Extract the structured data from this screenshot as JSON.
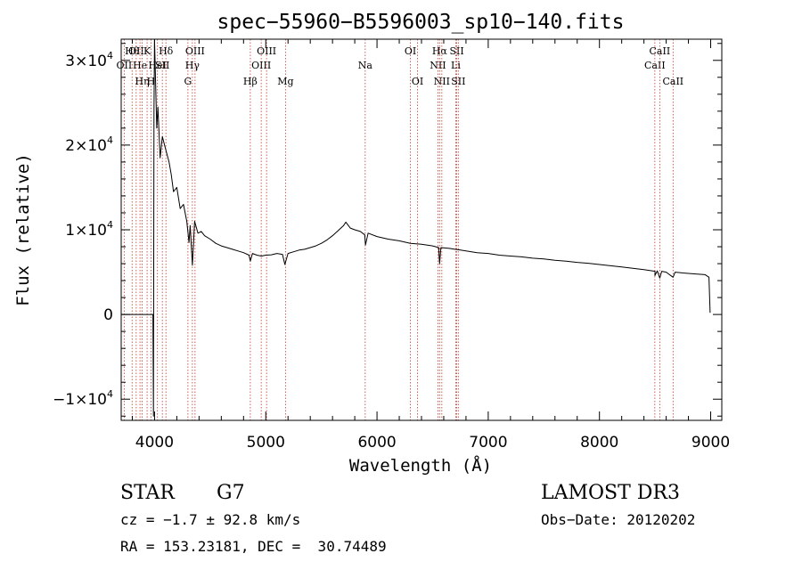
{
  "chart_data": {
    "type": "line",
    "title": "spec−55960−B5596003_sp10−140.fits",
    "xlabel": "Wavelength (Å)",
    "ylabel": "Flux (relative)",
    "xlim": [
      3700,
      9100
    ],
    "ylim": [
      -12500,
      32500
    ],
    "x_ticks": [
      {
        "value": 4000,
        "label": "4000"
      },
      {
        "value": 5000,
        "label": "5000"
      },
      {
        "value": 6000,
        "label": "6000"
      },
      {
        "value": 7000,
        "label": "7000"
      },
      {
        "value": 8000,
        "label": "8000"
      },
      {
        "value": 9000,
        "label": "9000"
      }
    ],
    "y_ticks": [
      {
        "value": -10000,
        "label": "−1×10",
        "exp": "4"
      },
      {
        "value": 0,
        "label": "0",
        "exp": ""
      },
      {
        "value": 10000,
        "label": "1×10",
        "exp": "4"
      },
      {
        "value": 20000,
        "label": "2×10",
        "exp": "4"
      },
      {
        "value": 30000,
        "label": "3×10",
        "exp": "4"
      }
    ],
    "series": [
      {
        "name": "spectrum",
        "color": "#000000",
        "points": [
          [
            3700,
            0
          ],
          [
            3985,
            0
          ],
          [
            3990,
            -12000
          ],
          [
            3995,
            24000
          ],
          [
            4000,
            32500
          ],
          [
            4010,
            27000
          ],
          [
            4020,
            22000
          ],
          [
            4030,
            24500
          ],
          [
            4050,
            18500
          ],
          [
            4070,
            21000
          ],
          [
            4100,
            19500
          ],
          [
            4130,
            18000
          ],
          [
            4150,
            16500
          ],
          [
            4170,
            14500
          ],
          [
            4200,
            15000
          ],
          [
            4230,
            12500
          ],
          [
            4260,
            13000
          ],
          [
            4290,
            11000
          ],
          [
            4310,
            8500
          ],
          [
            4320,
            10500
          ],
          [
            4340,
            5800
          ],
          [
            4360,
            11000
          ],
          [
            4390,
            9600
          ],
          [
            4420,
            9800
          ],
          [
            4450,
            9300
          ],
          [
            4500,
            8900
          ],
          [
            4550,
            8400
          ],
          [
            4600,
            8100
          ],
          [
            4650,
            7900
          ],
          [
            4700,
            7700
          ],
          [
            4750,
            7500
          ],
          [
            4800,
            7300
          ],
          [
            4850,
            7000
          ],
          [
            4861,
            6300
          ],
          [
            4880,
            7200
          ],
          [
            4920,
            7000
          ],
          [
            4960,
            6900
          ],
          [
            5000,
            7000
          ],
          [
            5050,
            7050
          ],
          [
            5100,
            7200
          ],
          [
            5150,
            7100
          ],
          [
            5172,
            5900
          ],
          [
            5200,
            7200
          ],
          [
            5250,
            7400
          ],
          [
            5300,
            7600
          ],
          [
            5350,
            7700
          ],
          [
            5400,
            7900
          ],
          [
            5450,
            8100
          ],
          [
            5500,
            8400
          ],
          [
            5550,
            8800
          ],
          [
            5600,
            9300
          ],
          [
            5650,
            9900
          ],
          [
            5700,
            10500
          ],
          [
            5720,
            10900
          ],
          [
            5760,
            10200
          ],
          [
            5800,
            10000
          ],
          [
            5850,
            9800
          ],
          [
            5890,
            9400
          ],
          [
            5896,
            8200
          ],
          [
            5920,
            9600
          ],
          [
            6000,
            9200
          ],
          [
            6100,
            8900
          ],
          [
            6200,
            8700
          ],
          [
            6300,
            8400
          ],
          [
            6400,
            8300
          ],
          [
            6500,
            8100
          ],
          [
            6555,
            7900
          ],
          [
            6563,
            6000
          ],
          [
            6575,
            7900
          ],
          [
            6650,
            7800
          ],
          [
            6700,
            7700
          ],
          [
            6750,
            7600
          ],
          [
            6800,
            7500
          ],
          [
            6900,
            7300
          ],
          [
            7000,
            7200
          ],
          [
            7100,
            7000
          ],
          [
            7200,
            6900
          ],
          [
            7300,
            6800
          ],
          [
            7400,
            6650
          ],
          [
            7500,
            6550
          ],
          [
            7600,
            6400
          ],
          [
            7700,
            6300
          ],
          [
            7800,
            6150
          ],
          [
            7900,
            6050
          ],
          [
            8000,
            5900
          ],
          [
            8100,
            5750
          ],
          [
            8200,
            5600
          ],
          [
            8300,
            5450
          ],
          [
            8400,
            5300
          ],
          [
            8500,
            5100
          ],
          [
            8498,
            4600
          ],
          [
            8520,
            5150
          ],
          [
            8542,
            4300
          ],
          [
            8560,
            5100
          ],
          [
            8600,
            5000
          ],
          [
            8662,
            4400
          ],
          [
            8680,
            5000
          ],
          [
            8750,
            4900
          ],
          [
            8850,
            4800
          ],
          [
            8950,
            4700
          ],
          [
            8985,
            4400
          ],
          [
            8995,
            200
          ]
        ]
      }
    ],
    "lines": [
      {
        "x": 3727,
        "label": "OII",
        "row": 2
      },
      {
        "x": 3798,
        "label": "Hθ",
        "row": 1
      },
      {
        "x": 3835,
        "label": "OII",
        "row": 1
      },
      {
        "x": 3869,
        "label": "He",
        "row": 2
      },
      {
        "x": 3889,
        "label": "Hη",
        "row": 3
      },
      {
        "x": 3933,
        "label": "K",
        "row": 1
      },
      {
        "x": 3968,
        "label": "H",
        "row": 3
      },
      {
        "x": 4026,
        "label": "HeI",
        "row": 2
      },
      {
        "x": 4070,
        "label": "SII",
        "row": 2
      },
      {
        "x": 4102,
        "label": "Hδ",
        "row": 1
      },
      {
        "x": 4300,
        "label": "G",
        "row": 3
      },
      {
        "x": 4340,
        "label": "Hγ",
        "row": 2
      },
      {
        "x": 4364,
        "label": "OIII",
        "row": 1
      },
      {
        "x": 4861,
        "label": "Hβ",
        "row": 3
      },
      {
        "x": 4959,
        "label": "OIII",
        "row": 2
      },
      {
        "x": 5007,
        "label": "OIII",
        "row": 1
      },
      {
        "x": 5177,
        "label": "Mg",
        "row": 3
      },
      {
        "x": 5894,
        "label": "Na",
        "row": 2
      },
      {
        "x": 6300,
        "label": "OI",
        "row": 1
      },
      {
        "x": 6364,
        "label": "OI",
        "row": 3
      },
      {
        "x": 6548,
        "label": "NII",
        "row": 2
      },
      {
        "x": 6563,
        "label": "Hα",
        "row": 1
      },
      {
        "x": 6583,
        "label": "NII",
        "row": 3
      },
      {
        "x": 6708,
        "label": "Li",
        "row": 2
      },
      {
        "x": 6717,
        "label": "SII",
        "row": 1
      },
      {
        "x": 6731,
        "label": "SII",
        "row": 3
      },
      {
        "x": 8498,
        "label": "CaII",
        "row": 2
      },
      {
        "x": 8542,
        "label": "CaII",
        "row": 1
      },
      {
        "x": 8662,
        "label": "CaII",
        "row": 3
      }
    ]
  },
  "info": {
    "object_class": "STAR",
    "subclass": "G7",
    "survey": "LAMOST DR3",
    "cz": "cz = −1.7 ± 92.8 km/s",
    "obs_date": "Obs−Date: 20120202",
    "coords": "RA = 153.23181, DEC =  30.74489"
  }
}
